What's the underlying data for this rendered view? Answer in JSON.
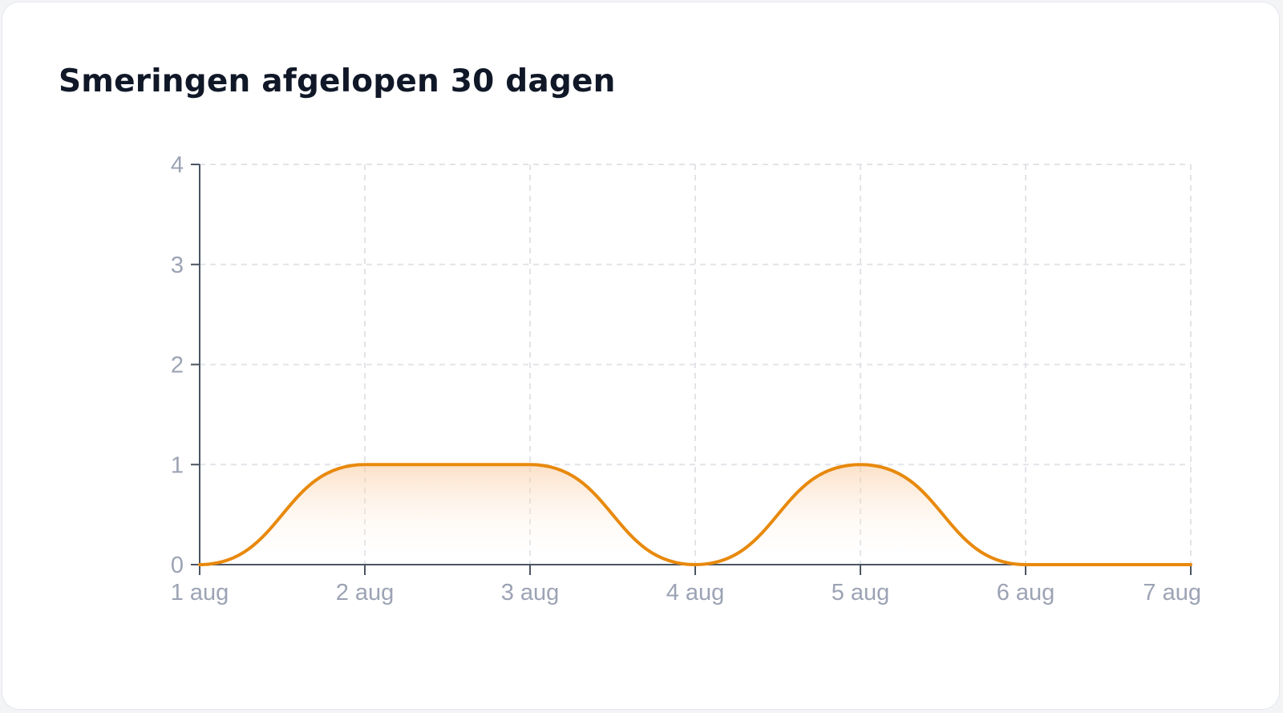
{
  "card": {
    "title": "Smeringen afgelopen 30 dagen"
  },
  "chart_data": {
    "type": "area",
    "title": "Smeringen afgelopen 30 dagen",
    "xlabel": "",
    "ylabel": "",
    "categories": [
      "1 aug",
      "2 aug",
      "3 aug",
      "4 aug",
      "5 aug",
      "6 aug",
      "7 aug"
    ],
    "series": [
      {
        "values": [
          0,
          1,
          1,
          0,
          1,
          0,
          0
        ]
      }
    ],
    "yticks": [
      "0",
      "1",
      "2",
      "3",
      "4"
    ],
    "ylim": [
      0,
      4
    ],
    "grid": true,
    "curve": "smooth",
    "colors": {
      "line": "#e8890c",
      "fill_top": "#f9c89a",
      "axis": "#4b5563",
      "grid": "#e2e4e8",
      "tick_label": "#9ca3b4"
    }
  }
}
